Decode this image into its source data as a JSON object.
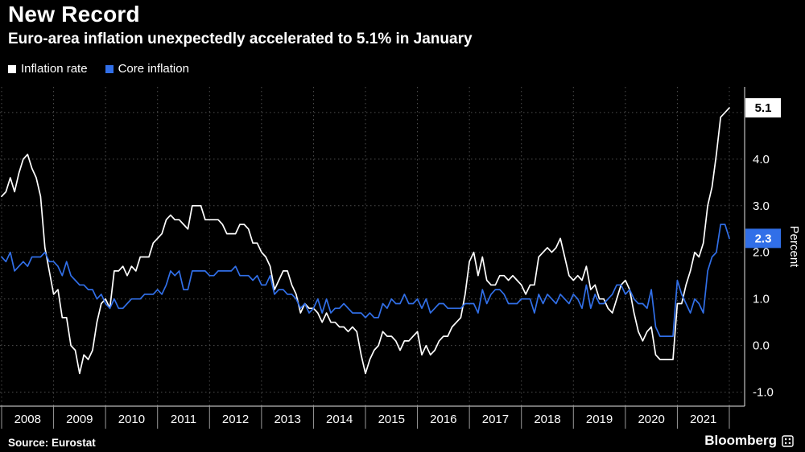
{
  "chart_data": {
    "type": "line",
    "title": "New Record",
    "subtitle": "Euro-area inflation unexpectedly accelerated to 5.1% in January",
    "ylabel": "Percent",
    "xlabel": "",
    "frequency": "monthly",
    "x_start": "2008-01",
    "x_end": "2022-01",
    "xticks": [
      "2008",
      "2009",
      "2010",
      "2011",
      "2012",
      "2013",
      "2014",
      "2015",
      "2016",
      "2017",
      "2018",
      "2019",
      "2020",
      "2021"
    ],
    "yticks": [
      4.0,
      3.0,
      2.0,
      1.0,
      0.0,
      -1.0
    ],
    "ygrid": [
      5.0,
      4.0,
      3.0,
      2.0,
      1.0,
      0.0,
      -1.0
    ],
    "ylim": [
      -1.3,
      5.55
    ],
    "grid": "dotted",
    "legend_position": "top-left",
    "colors": {
      "background": "#000000",
      "grid": "#4d4d4d",
      "axis": "#e6e6e6",
      "tick": "#9a9a9a",
      "text": "#ffffff",
      "accent_blue": "#316FE8"
    },
    "legend": [
      {
        "label": "Inflation rate",
        "color": "#ffffff"
      },
      {
        "label": "Core inflation",
        "color": "#316FE8"
      }
    ],
    "end_labels": [
      {
        "text": "5.1",
        "value": 5.1,
        "bg": "#ffffff",
        "fg": "#000000"
      },
      {
        "text": "2.3",
        "value": 2.3,
        "bg": "#316FE8",
        "fg": "#ffffff"
      }
    ],
    "series": [
      {
        "name": "Inflation rate",
        "color": "#ffffff",
        "values": [
          3.2,
          3.3,
          3.6,
          3.3,
          3.7,
          4.0,
          4.1,
          3.8,
          3.6,
          3.2,
          2.1,
          1.6,
          1.1,
          1.2,
          0.6,
          0.6,
          0.0,
          -0.1,
          -0.6,
          -0.2,
          -0.3,
          -0.1,
          0.5,
          0.9,
          1.0,
          0.8,
          1.6,
          1.6,
          1.7,
          1.5,
          1.7,
          1.6,
          1.9,
          1.9,
          1.9,
          2.2,
          2.3,
          2.4,
          2.7,
          2.8,
          2.7,
          2.7,
          2.6,
          2.5,
          3.0,
          3.0,
          3.0,
          2.7,
          2.7,
          2.7,
          2.7,
          2.6,
          2.4,
          2.4,
          2.4,
          2.6,
          2.6,
          2.5,
          2.2,
          2.2,
          2.0,
          1.9,
          1.7,
          1.2,
          1.4,
          1.6,
          1.6,
          1.3,
          1.1,
          0.7,
          0.9,
          0.8,
          0.8,
          0.7,
          0.5,
          0.7,
          0.5,
          0.5,
          0.4,
          0.4,
          0.3,
          0.4,
          0.3,
          -0.2,
          -0.6,
          -0.3,
          -0.1,
          0.0,
          0.3,
          0.2,
          0.2,
          0.1,
          -0.1,
          0.1,
          0.1,
          0.2,
          0.3,
          -0.2,
          0.0,
          -0.2,
          -0.1,
          0.1,
          0.2,
          0.2,
          0.4,
          0.5,
          0.6,
          1.1,
          1.8,
          2.0,
          1.5,
          1.9,
          1.4,
          1.3,
          1.3,
          1.5,
          1.5,
          1.4,
          1.5,
          1.4,
          1.3,
          1.1,
          1.3,
          1.3,
          1.9,
          2.0,
          2.1,
          2.0,
          2.1,
          2.3,
          1.9,
          1.5,
          1.4,
          1.5,
          1.4,
          1.7,
          1.2,
          1.3,
          1.0,
          1.0,
          0.8,
          0.7,
          1.0,
          1.3,
          1.4,
          1.2,
          0.7,
          0.3,
          0.1,
          0.3,
          0.4,
          -0.2,
          -0.3,
          -0.3,
          -0.3,
          -0.3,
          0.9,
          0.9,
          1.3,
          1.6,
          2.0,
          1.9,
          2.2,
          3.0,
          3.4,
          4.1,
          4.9,
          5.0,
          5.1
        ]
      },
      {
        "name": "Core inflation",
        "color": "#316FE8",
        "values": [
          1.9,
          1.8,
          2.0,
          1.6,
          1.7,
          1.8,
          1.7,
          1.9,
          1.9,
          1.9,
          2.0,
          1.8,
          1.8,
          1.7,
          1.5,
          1.8,
          1.5,
          1.4,
          1.3,
          1.3,
          1.2,
          1.2,
          1.0,
          1.1,
          0.9,
          0.8,
          1.0,
          0.8,
          0.8,
          0.9,
          1.0,
          1.0,
          1.0,
          1.1,
          1.1,
          1.1,
          1.2,
          1.1,
          1.3,
          1.6,
          1.5,
          1.6,
          1.2,
          1.2,
          1.6,
          1.6,
          1.6,
          1.6,
          1.5,
          1.5,
          1.6,
          1.6,
          1.6,
          1.6,
          1.7,
          1.5,
          1.5,
          1.5,
          1.4,
          1.5,
          1.3,
          1.3,
          1.5,
          1.1,
          1.2,
          1.2,
          1.1,
          1.1,
          1.0,
          0.8,
          0.9,
          0.7,
          0.8,
          1.0,
          0.7,
          1.0,
          0.7,
          0.8,
          0.8,
          0.9,
          0.8,
          0.7,
          0.7,
          0.7,
          0.6,
          0.7,
          0.6,
          0.6,
          0.9,
          0.8,
          1.0,
          0.9,
          0.9,
          1.1,
          0.9,
          0.9,
          1.0,
          0.8,
          1.0,
          0.7,
          0.8,
          0.9,
          0.9,
          0.8,
          0.8,
          0.8,
          0.8,
          0.9,
          0.9,
          0.9,
          0.7,
          1.2,
          0.9,
          1.1,
          1.2,
          1.2,
          1.1,
          0.9,
          0.9,
          0.9,
          1.0,
          1.0,
          1.0,
          0.7,
          1.1,
          0.9,
          1.1,
          1.0,
          0.9,
          1.1,
          1.0,
          0.9,
          1.1,
          1.0,
          0.8,
          1.3,
          0.8,
          1.1,
          0.9,
          0.9,
          1.0,
          1.1,
          1.3,
          1.3,
          1.1,
          1.2,
          1.0,
          0.9,
          0.9,
          0.8,
          1.2,
          0.4,
          0.2,
          0.2,
          0.2,
          0.2,
          1.4,
          1.1,
          0.9,
          0.7,
          1.0,
          0.9,
          0.7,
          1.6,
          1.9,
          2.0,
          2.6,
          2.6,
          2.3
        ]
      }
    ]
  },
  "footer": {
    "source": "Source: Eurostat",
    "brand": "Bloomberg"
  }
}
